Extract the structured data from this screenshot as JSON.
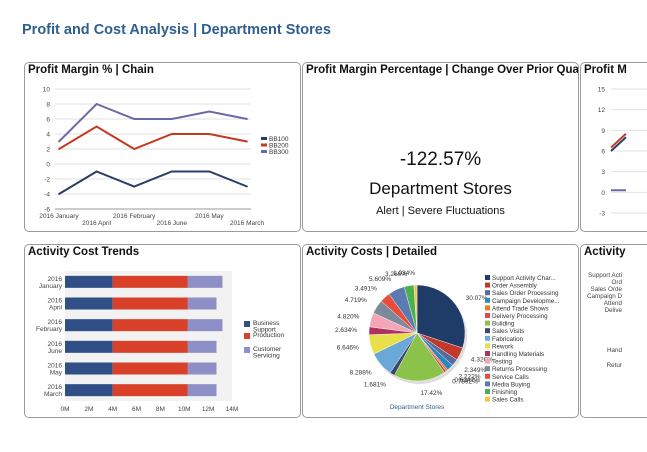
{
  "page_title": "Profit and Cost Analysis | Department Stores",
  "panels": {
    "margin_chain": {
      "title": "Profit Margin % | Chain",
      "legend": [
        "BB100",
        "BB200",
        "BB300"
      ]
    },
    "margin_change": {
      "title": "Profit Margin Percentage | Change Over Prior Quarter",
      "value": "-122.57%",
      "label": "Department Stores",
      "alert": "Alert | Severe Fluctuations"
    },
    "margin_partial": {
      "title": "Profit M",
      "y_ticks": [
        "15",
        "12",
        "9",
        "6",
        "3",
        "0",
        "-3"
      ]
    },
    "cost_trends": {
      "title": "Activity Cost Trends",
      "legend": [
        "Business Support",
        "Production",
        "Customer Servicing"
      ]
    },
    "cost_detailed": {
      "title": "Activity Costs | Detailed",
      "xlabel": "Department Stores",
      "legend": [
        "Support Activity Char...",
        "Order Assembly",
        "Sales Order Processing",
        "Campaign Developme...",
        "Attend Trade Shows",
        "Delivery Processing",
        "Building",
        "Sales Visits",
        "Fabrication",
        "Rework",
        "Handling Materials",
        "Testing",
        "Returns Processing",
        "Service Calls",
        "Media Buying",
        "Finishing",
        "Sales Calls"
      ]
    },
    "activity_partial": {
      "title": "Activity",
      "labels": [
        "Support Acti",
        "Ord",
        "Sales Orde",
        "Campaign D",
        "Attend",
        "Delive",
        "Hand",
        "Retur"
      ]
    }
  },
  "colors": {
    "title_blue": "#2e5f8f",
    "bb100": "#2b3d66",
    "bb200": "#c23b1e",
    "bb300": "#6a6aa8",
    "business_support": "#2f4f86",
    "production": "#d9402a",
    "customer_servicing": "#8f8fc8"
  },
  "chart_data": [
    {
      "type": "line",
      "title": "Profit Margin % | Chain",
      "x": [
        "2016 January",
        "2016 April",
        "2016 February",
        "2016 June",
        "2016 May",
        "2016 March"
      ],
      "series": [
        {
          "name": "BB100",
          "values": [
            -4,
            -1,
            -3,
            -1,
            -1,
            -3
          ]
        },
        {
          "name": "BB200",
          "values": [
            2,
            5,
            2,
            4,
            4,
            3
          ]
        },
        {
          "name": "BB300",
          "values": [
            3,
            8,
            6,
            6,
            7,
            6
          ]
        }
      ],
      "y_ticks": [
        10,
        8,
        6,
        4,
        2,
        0,
        -2,
        -4,
        -6
      ],
      "ylim": [
        -6,
        10
      ],
      "legend": "right",
      "grid": true
    },
    {
      "type": "bar",
      "orientation": "horizontal",
      "stacked": true,
      "title": "Activity Cost Trends",
      "categories": [
        "2016 January",
        "2016 April",
        "2016 February",
        "2016 June",
        "2016 May",
        "2016 March"
      ],
      "series": [
        {
          "name": "Business Support",
          "values": [
            4,
            4,
            4,
            4,
            4,
            4
          ]
        },
        {
          "name": "Production",
          "values": [
            6.3,
            6.3,
            6.3,
            6.3,
            6.3,
            6.3
          ]
        },
        {
          "name": "Customer Servicing",
          "values": [
            2.9,
            2.4,
            2.9,
            2.4,
            2.4,
            2.4
          ]
        }
      ],
      "x_ticks": [
        "0M",
        "2M",
        "4M",
        "6M",
        "8M",
        "10M",
        "12M",
        "14M"
      ],
      "xlim": [
        0,
        14
      ],
      "legend": "right"
    },
    {
      "type": "pie",
      "title": "Activity Costs | Detailed",
      "xlabel": "Department Stores",
      "slices": [
        {
          "label": "Support Activity Char...",
          "value": 30.07,
          "value_label": "30.07%",
          "color": "#1f3b68"
        },
        {
          "label": "Order Assembly",
          "value": 4.326,
          "value_label": "4.326%",
          "color": "#c0392b"
        },
        {
          "label": "Sales Order Processing",
          "value": 2.349,
          "value_label": "2.349%",
          "color": "#5a6a9e"
        },
        {
          "label": "Campaign Developme...",
          "value": 2.222,
          "value_label": "2.222%",
          "color": "#2e86c1"
        },
        {
          "label": "Attend Trade Shows",
          "value": 0.6347,
          "value_label": "0.6347%",
          "color": "#e67e22"
        },
        {
          "label": "Delivery Processing",
          "value": 0.7892,
          "value_label": "0.7892%",
          "color": "#d84a5a"
        },
        {
          "label": "Building",
          "value": 17.42,
          "value_label": "17.42%",
          "color": "#8bc34a"
        },
        {
          "label": "Sales Visits",
          "value": 1.681,
          "value_label": "1.681%",
          "color": "#3a4a6a"
        },
        {
          "label": "Fabrication",
          "value": 8.288,
          "value_label": "8.288%",
          "color": "#6aa8d8"
        },
        {
          "label": "Rework",
          "value": 6.646,
          "value_label": "6.646%",
          "color": "#e8e04a"
        },
        {
          "label": "Handling Materials",
          "value": 2.634,
          "value_label": "2.634%",
          "color": "#b03060"
        },
        {
          "label": "Testing",
          "value": 4.82,
          "value_label": "4.820%",
          "color": "#f4a6b6"
        },
        {
          "label": "Returns Processing",
          "value": 4.719,
          "value_label": "4.719%",
          "color": "#7a8a9a"
        },
        {
          "label": "Service Calls",
          "value": 3.491,
          "value_label": "3.491%",
          "color": "#e74c3c"
        },
        {
          "label": "Media Buying",
          "value": 5.609,
          "value_label": "5.609%",
          "color": "#5b7bb0"
        },
        {
          "label": "Finishing",
          "value": 3.266,
          "value_label": "3.266%",
          "color": "#4caf50"
        },
        {
          "label": "Sales Calls",
          "value": 1.034,
          "value_label": "1.034%",
          "color": "#f5c542"
        }
      ],
      "legend": "right"
    }
  ]
}
